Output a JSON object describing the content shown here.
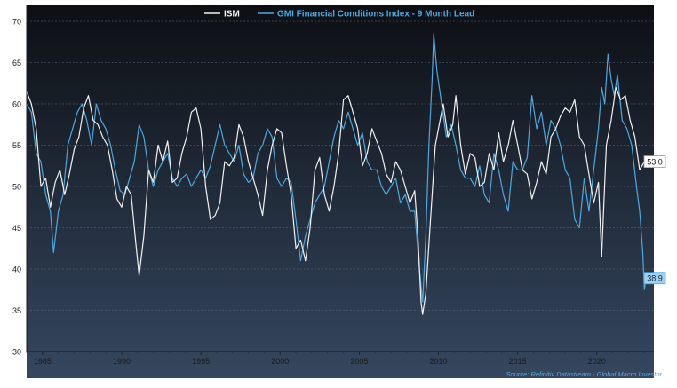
{
  "chart_data": {
    "type": "line",
    "title": "",
    "xlabel": "",
    "ylabel": "",
    "xlim": [
      1984.0,
      2023.6
    ],
    "ylim": [
      30,
      70
    ],
    "y_ticks": [
      "30",
      "35",
      "40",
      "45",
      "50",
      "55",
      "60",
      "65",
      "70"
    ],
    "x_ticks": [
      {
        "v": 1985,
        "label": "1985"
      },
      {
        "v": 1990,
        "label": "1990"
      },
      {
        "v": 1995,
        "label": "1995"
      },
      {
        "v": 2000,
        "label": "2000"
      },
      {
        "v": 2005,
        "label": "2005"
      },
      {
        "v": 2010,
        "label": "2010"
      },
      {
        "v": 2015,
        "label": "2015"
      },
      {
        "v": 2020,
        "label": "2020"
      }
    ],
    "grid": "horizontal dashed",
    "legend_position": "top-center",
    "source": "Source: Refinitiv Datastream - Global Macro Investor",
    "colors": {
      "bg_top": "#0d0f14",
      "bg_bottom": "#35475f",
      "ism": "#f2f2f2",
      "gmi": "#4fa8e0",
      "axis": "#1a1a1a"
    },
    "series": [
      {
        "name": "ISM",
        "end_label": "53.0",
        "points": [
          [
            1984.0,
            61.5
          ],
          [
            1984.3,
            60.0
          ],
          [
            1984.6,
            57.0
          ],
          [
            1984.9,
            50.0
          ],
          [
            1985.2,
            51.0
          ],
          [
            1985.5,
            47.5
          ],
          [
            1985.8,
            50.5
          ],
          [
            1986.1,
            52.0
          ],
          [
            1986.4,
            49.0
          ],
          [
            1986.7,
            51.5
          ],
          [
            1987.0,
            54.5
          ],
          [
            1987.3,
            56.0
          ],
          [
            1987.6,
            59.5
          ],
          [
            1987.9,
            61.0
          ],
          [
            1988.2,
            58.0
          ],
          [
            1988.5,
            57.5
          ],
          [
            1988.8,
            56.0
          ],
          [
            1989.1,
            55.0
          ],
          [
            1989.4,
            52.0
          ],
          [
            1989.7,
            48.5
          ],
          [
            1990.0,
            47.5
          ],
          [
            1990.3,
            50.0
          ],
          [
            1990.6,
            49.0
          ],
          [
            1990.9,
            43.0
          ],
          [
            1991.1,
            39.2
          ],
          [
            1991.4,
            44.0
          ],
          [
            1991.7,
            52.0
          ],
          [
            1992.0,
            50.5
          ],
          [
            1992.3,
            55.0
          ],
          [
            1992.6,
            53.0
          ],
          [
            1992.9,
            55.5
          ],
          [
            1993.2,
            50.5
          ],
          [
            1993.5,
            51.0
          ],
          [
            1993.8,
            54.0
          ],
          [
            1994.1,
            56.0
          ],
          [
            1994.4,
            59.0
          ],
          [
            1994.7,
            59.5
          ],
          [
            1995.0,
            57.0
          ],
          [
            1995.3,
            50.0
          ],
          [
            1995.6,
            46.0
          ],
          [
            1995.9,
            46.5
          ],
          [
            1996.2,
            48.0
          ],
          [
            1996.5,
            53.0
          ],
          [
            1996.8,
            52.5
          ],
          [
            1997.1,
            53.5
          ],
          [
            1997.4,
            57.5
          ],
          [
            1997.7,
            56.0
          ],
          [
            1998.0,
            53.0
          ],
          [
            1998.3,
            51.0
          ],
          [
            1998.6,
            49.0
          ],
          [
            1998.9,
            46.5
          ],
          [
            1999.2,
            52.0
          ],
          [
            1999.5,
            55.0
          ],
          [
            1999.8,
            57.0
          ],
          [
            2000.1,
            56.5
          ],
          [
            2000.4,
            52.5
          ],
          [
            2000.7,
            49.0
          ],
          [
            2001.0,
            42.5
          ],
          [
            2001.3,
            43.5
          ],
          [
            2001.6,
            41.0
          ],
          [
            2001.9,
            45.0
          ],
          [
            2002.2,
            52.0
          ],
          [
            2002.5,
            53.5
          ],
          [
            2002.8,
            49.0
          ],
          [
            2003.1,
            47.0
          ],
          [
            2003.4,
            50.0
          ],
          [
            2003.7,
            54.0
          ],
          [
            2004.0,
            60.5
          ],
          [
            2004.3,
            61.0
          ],
          [
            2004.6,
            59.0
          ],
          [
            2004.9,
            57.0
          ],
          [
            2005.2,
            52.5
          ],
          [
            2005.5,
            54.0
          ],
          [
            2005.8,
            57.0
          ],
          [
            2006.1,
            55.5
          ],
          [
            2006.4,
            54.0
          ],
          [
            2006.7,
            51.5
          ],
          [
            2007.0,
            50.5
          ],
          [
            2007.3,
            53.0
          ],
          [
            2007.6,
            52.0
          ],
          [
            2007.9,
            50.0
          ],
          [
            2008.2,
            48.0
          ],
          [
            2008.5,
            49.5
          ],
          [
            2008.7,
            44.0
          ],
          [
            2008.9,
            36.0
          ],
          [
            2009.0,
            34.5
          ],
          [
            2009.2,
            37.0
          ],
          [
            2009.4,
            43.0
          ],
          [
            2009.6,
            49.0
          ],
          [
            2009.8,
            55.0
          ],
          [
            2010.0,
            57.0
          ],
          [
            2010.3,
            60.0
          ],
          [
            2010.6,
            56.0
          ],
          [
            2010.9,
            57.5
          ],
          [
            2011.1,
            61.0
          ],
          [
            2011.4,
            55.0
          ],
          [
            2011.7,
            51.5
          ],
          [
            2012.0,
            54.0
          ],
          [
            2012.3,
            53.5
          ],
          [
            2012.6,
            50.0
          ],
          [
            2012.9,
            50.5
          ],
          [
            2013.2,
            54.0
          ],
          [
            2013.5,
            52.0
          ],
          [
            2013.8,
            56.5
          ],
          [
            2014.1,
            53.0
          ],
          [
            2014.4,
            55.0
          ],
          [
            2014.7,
            58.0
          ],
          [
            2015.0,
            55.0
          ],
          [
            2015.3,
            52.0
          ],
          [
            2015.6,
            51.5
          ],
          [
            2015.9,
            48.5
          ],
          [
            2016.2,
            50.5
          ],
          [
            2016.5,
            53.0
          ],
          [
            2016.8,
            51.5
          ],
          [
            2017.1,
            56.0
          ],
          [
            2017.4,
            57.0
          ],
          [
            2017.7,
            58.5
          ],
          [
            2018.0,
            59.5
          ],
          [
            2018.3,
            59.0
          ],
          [
            2018.6,
            60.5
          ],
          [
            2018.9,
            56.0
          ],
          [
            2019.2,
            55.0
          ],
          [
            2019.5,
            51.5
          ],
          [
            2019.8,
            48.0
          ],
          [
            2020.1,
            50.5
          ],
          [
            2020.3,
            41.5
          ],
          [
            2020.6,
            55.0
          ],
          [
            2020.9,
            58.0
          ],
          [
            2021.2,
            62.0
          ],
          [
            2021.5,
            60.5
          ],
          [
            2021.8,
            61.0
          ],
          [
            2022.1,
            58.0
          ],
          [
            2022.4,
            56.0
          ],
          [
            2022.7,
            52.0
          ],
          [
            2023.0,
            53.0
          ]
        ]
      },
      {
        "name": "GMI Financial Conditions Index - 9 Month Lead",
        "end_label": "38.9",
        "points": [
          [
            1984.0,
            60.0
          ],
          [
            1984.3,
            59.0
          ],
          [
            1984.6,
            54.0
          ],
          [
            1984.9,
            53.0
          ],
          [
            1985.2,
            49.0
          ],
          [
            1985.5,
            47.0
          ],
          [
            1985.7,
            42.0
          ],
          [
            1986.0,
            47.0
          ],
          [
            1986.3,
            49.0
          ],
          [
            1986.6,
            55.0
          ],
          [
            1986.9,
            57.0
          ],
          [
            1987.2,
            59.0
          ],
          [
            1987.5,
            60.0
          ],
          [
            1987.8,
            58.0
          ],
          [
            1988.1,
            55.0
          ],
          [
            1988.4,
            60.0
          ],
          [
            1988.7,
            58.0
          ],
          [
            1989.0,
            57.0
          ],
          [
            1989.3,
            55.0
          ],
          [
            1989.6,
            52.0
          ],
          [
            1989.9,
            49.5
          ],
          [
            1990.2,
            49.0
          ],
          [
            1990.5,
            51.0
          ],
          [
            1990.8,
            53.0
          ],
          [
            1991.1,
            57.5
          ],
          [
            1991.4,
            56.0
          ],
          [
            1991.7,
            52.0
          ],
          [
            1992.0,
            50.0
          ],
          [
            1992.3,
            52.0
          ],
          [
            1992.6,
            53.0
          ],
          [
            1992.9,
            54.0
          ],
          [
            1993.2,
            51.0
          ],
          [
            1993.5,
            50.0
          ],
          [
            1993.8,
            51.0
          ],
          [
            1994.1,
            51.5
          ],
          [
            1994.4,
            50.0
          ],
          [
            1994.7,
            51.0
          ],
          [
            1995.0,
            52.0
          ],
          [
            1995.3,
            51.0
          ],
          [
            1995.6,
            52.5
          ],
          [
            1995.9,
            55.0
          ],
          [
            1996.2,
            57.5
          ],
          [
            1996.5,
            55.0
          ],
          [
            1996.8,
            54.0
          ],
          [
            1997.1,
            53.0
          ],
          [
            1997.4,
            55.0
          ],
          [
            1997.7,
            51.5
          ],
          [
            1998.0,
            50.5
          ],
          [
            1998.3,
            51.0
          ],
          [
            1998.6,
            54.0
          ],
          [
            1998.9,
            55.0
          ],
          [
            1999.2,
            57.0
          ],
          [
            1999.5,
            56.0
          ],
          [
            1999.8,
            51.0
          ],
          [
            2000.1,
            50.0
          ],
          [
            2000.4,
            51.0
          ],
          [
            2000.7,
            50.5
          ],
          [
            2001.0,
            46.0
          ],
          [
            2001.3,
            41.0
          ],
          [
            2001.6,
            44.0
          ],
          [
            2001.9,
            46.0
          ],
          [
            2002.2,
            48.0
          ],
          [
            2002.5,
            49.0
          ],
          [
            2002.8,
            50.0
          ],
          [
            2003.1,
            53.0
          ],
          [
            2003.4,
            56.0
          ],
          [
            2003.7,
            58.0
          ],
          [
            2004.0,
            57.0
          ],
          [
            2004.3,
            59.0
          ],
          [
            2004.6,
            57.0
          ],
          [
            2004.9,
            55.0
          ],
          [
            2005.2,
            56.5
          ],
          [
            2005.5,
            53.0
          ],
          [
            2005.8,
            52.0
          ],
          [
            2006.1,
            52.0
          ],
          [
            2006.4,
            50.0
          ],
          [
            2006.7,
            49.0
          ],
          [
            2007.0,
            50.0
          ],
          [
            2007.3,
            51.0
          ],
          [
            2007.6,
            48.0
          ],
          [
            2007.9,
            49.0
          ],
          [
            2008.2,
            47.0
          ],
          [
            2008.5,
            47.0
          ],
          [
            2008.8,
            40.0
          ],
          [
            2009.0,
            36.0
          ],
          [
            2009.2,
            44.0
          ],
          [
            2009.4,
            55.0
          ],
          [
            2009.6,
            63.0
          ],
          [
            2009.7,
            68.5
          ],
          [
            2009.9,
            64.0
          ],
          [
            2010.2,
            60.0
          ],
          [
            2010.5,
            56.0
          ],
          [
            2010.8,
            57.5
          ],
          [
            2011.1,
            55.0
          ],
          [
            2011.4,
            52.0
          ],
          [
            2011.7,
            51.0
          ],
          [
            2012.0,
            51.0
          ],
          [
            2012.3,
            50.0
          ],
          [
            2012.6,
            52.5
          ],
          [
            2012.9,
            49.0
          ],
          [
            2013.2,
            48.0
          ],
          [
            2013.5,
            54.0
          ],
          [
            2013.8,
            52.0
          ],
          [
            2014.1,
            49.0
          ],
          [
            2014.4,
            47.0
          ],
          [
            2014.7,
            53.0
          ],
          [
            2015.0,
            52.0
          ],
          [
            2015.3,
            52.0
          ],
          [
            2015.6,
            53.5
          ],
          [
            2015.9,
            61.0
          ],
          [
            2016.2,
            57.0
          ],
          [
            2016.5,
            59.0
          ],
          [
            2016.8,
            55.0
          ],
          [
            2017.1,
            58.0
          ],
          [
            2017.4,
            57.0
          ],
          [
            2017.7,
            55.0
          ],
          [
            2018.0,
            52.0
          ],
          [
            2018.3,
            51.0
          ],
          [
            2018.6,
            46.0
          ],
          [
            2018.9,
            45.0
          ],
          [
            2019.2,
            51.0
          ],
          [
            2019.5,
            47.0
          ],
          [
            2019.8,
            52.0
          ],
          [
            2020.1,
            57.0
          ],
          [
            2020.3,
            62.0
          ],
          [
            2020.5,
            60.0
          ],
          [
            2020.7,
            66.0
          ],
          [
            2020.9,
            63.0
          ],
          [
            2021.1,
            61.0
          ],
          [
            2021.3,
            63.5
          ],
          [
            2021.6,
            58.0
          ],
          [
            2021.9,
            57.0
          ],
          [
            2022.2,
            55.0
          ],
          [
            2022.5,
            50.0
          ],
          [
            2022.7,
            47.0
          ],
          [
            2022.9,
            42.0
          ],
          [
            2023.0,
            37.5
          ],
          [
            2023.1,
            38.9
          ]
        ]
      }
    ]
  }
}
